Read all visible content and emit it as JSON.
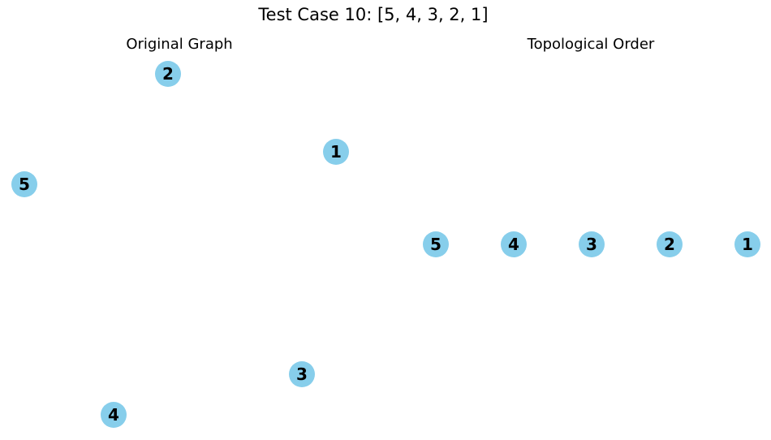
{
  "figure": {
    "title": "Test Case 10: [5, 4, 3, 2, 1]",
    "node_color": "#87ceeb"
  },
  "panels": {
    "original": {
      "title": "Original Graph",
      "nodes": [
        "1",
        "2",
        "3",
        "4",
        "5"
      ],
      "edges": []
    },
    "topological": {
      "title": "Topological Order",
      "order": [
        "5",
        "4",
        "3",
        "2",
        "1"
      ]
    }
  }
}
